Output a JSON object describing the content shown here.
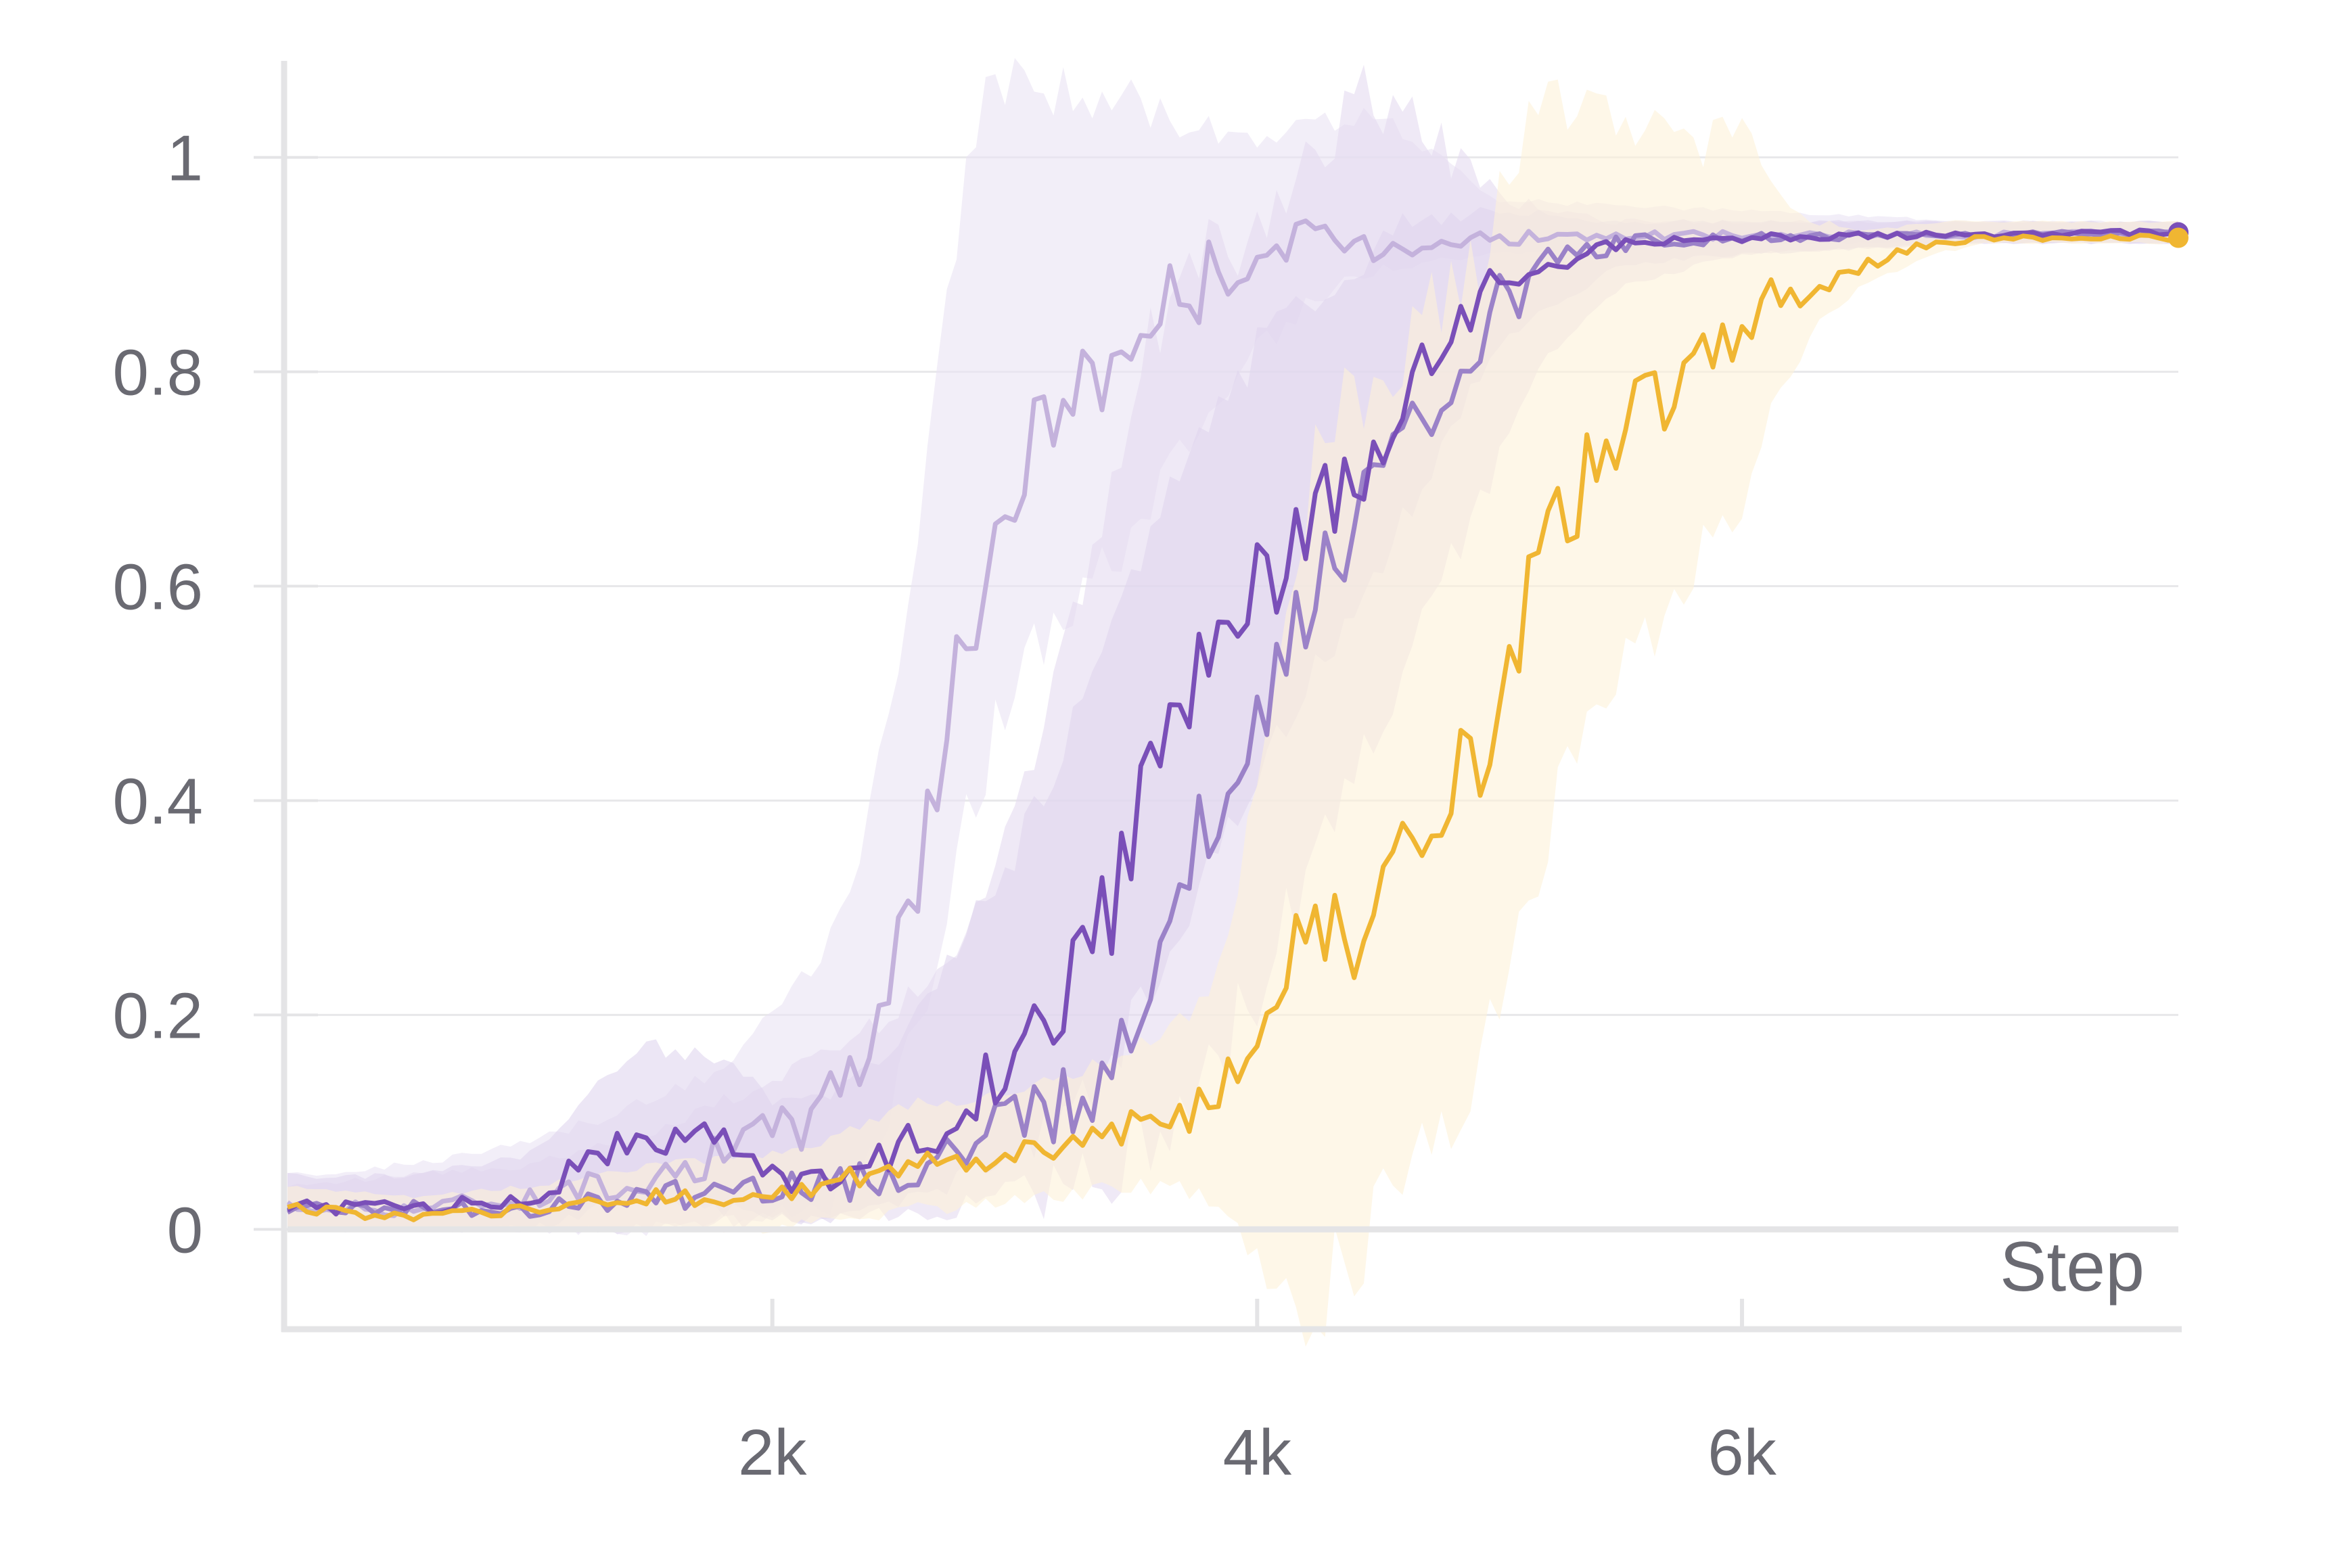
{
  "chart_data": {
    "type": "line",
    "xlabel": "Step",
    "ylabel": "",
    "xlim": [
      0,
      7800
    ],
    "ylim": [
      -0.09,
      1.09
    ],
    "grid": true,
    "x_ticks": [
      {
        "value": 2000,
        "label": "2k"
      },
      {
        "value": 4000,
        "label": "4k"
      },
      {
        "value": 6000,
        "label": "6k"
      }
    ],
    "y_ticks": [
      {
        "value": 0,
        "label": "0"
      },
      {
        "value": 0.2,
        "label": "0.2"
      },
      {
        "value": 0.4,
        "label": "0.4"
      },
      {
        "value": 0.6,
        "label": "0.6"
      },
      {
        "value": 0.8,
        "label": "0.8"
      },
      {
        "value": 1,
        "label": "1"
      }
    ],
    "series": [
      {
        "color": "#c4b2dc",
        "band_color": "#e9e2f3",
        "x": [
          0,
          500,
          1000,
          1500,
          1800,
          2000,
          2200,
          2400,
          2500,
          2600,
          2700,
          2800,
          2900,
          3000,
          3100,
          3300,
          3500,
          3600,
          3800,
          4000,
          4200,
          4500,
          5000,
          6000,
          7000,
          7800
        ],
        "y": [
          0.02,
          0.02,
          0.03,
          0.05,
          0.07,
          0.09,
          0.11,
          0.18,
          0.26,
          0.33,
          0.45,
          0.55,
          0.63,
          0.69,
          0.75,
          0.79,
          0.83,
          0.86,
          0.89,
          0.91,
          0.92,
          0.92,
          0.925,
          0.927,
          0.928,
          0.93
        ],
        "low": [
          0.0,
          0.0,
          0.0,
          0.0,
          0.01,
          0.01,
          0.02,
          0.06,
          0.12,
          0.2,
          0.28,
          0.38,
          0.45,
          0.5,
          0.55,
          0.6,
          0.65,
          0.7,
          0.76,
          0.82,
          0.86,
          0.9,
          0.91,
          0.92,
          0.92,
          0.92
        ],
        "high": [
          0.05,
          0.06,
          0.08,
          0.12,
          0.15,
          0.2,
          0.25,
          0.38,
          0.5,
          0.65,
          0.85,
          1.0,
          1.05,
          1.08,
          1.07,
          1.05,
          1.06,
          1.04,
          1.03,
          1.02,
          1.03,
          1.04,
          0.96,
          0.95,
          0.94,
          0.94
        ]
      },
      {
        "color": "#9b82c8",
        "band_color": "#e4dbf0",
        "x": [
          0,
          500,
          1000,
          1500,
          2000,
          2500,
          2800,
          3000,
          3200,
          3400,
          3500,
          3600,
          3800,
          4000,
          4200,
          4400,
          4600,
          4800,
          5000,
          5200,
          5500,
          6000,
          7000,
          7800
        ],
        "y": [
          0.02,
          0.02,
          0.02,
          0.03,
          0.04,
          0.05,
          0.07,
          0.09,
          0.12,
          0.16,
          0.2,
          0.28,
          0.38,
          0.48,
          0.58,
          0.66,
          0.72,
          0.79,
          0.86,
          0.9,
          0.92,
          0.925,
          0.928,
          0.93
        ],
        "low": [
          0.0,
          0.0,
          0.0,
          0.0,
          0.01,
          0.01,
          0.02,
          0.03,
          0.04,
          0.06,
          0.08,
          0.1,
          0.15,
          0.22,
          0.32,
          0.42,
          0.52,
          0.62,
          0.72,
          0.82,
          0.88,
          0.91,
          0.92,
          0.92
        ],
        "high": [
          0.04,
          0.05,
          0.06,
          0.09,
          0.14,
          0.2,
          0.28,
          0.38,
          0.55,
          0.7,
          0.8,
          0.86,
          0.9,
          0.95,
          1.0,
          1.05,
          1.05,
          1.0,
          0.96,
          0.95,
          0.94,
          0.94,
          0.94,
          0.94
        ]
      },
      {
        "color": "#7a4fb8",
        "band_color": "#e0d6ee",
        "x": [
          0,
          500,
          1000,
          1300,
          1500,
          1800,
          2000,
          2200,
          2400,
          2600,
          2800,
          3000,
          3200,
          3400,
          3500,
          3600,
          3800,
          4000,
          4200,
          4400,
          4600,
          4800,
          5000,
          5500,
          6000,
          7000,
          7800
        ],
        "y": [
          0.02,
          0.02,
          0.03,
          0.07,
          0.09,
          0.08,
          0.05,
          0.05,
          0.06,
          0.08,
          0.12,
          0.16,
          0.22,
          0.3,
          0.38,
          0.44,
          0.53,
          0.6,
          0.65,
          0.7,
          0.77,
          0.84,
          0.89,
          0.92,
          0.925,
          0.928,
          0.93
        ],
        "low": [
          0.0,
          0.0,
          0.0,
          0.02,
          0.03,
          0.02,
          0.01,
          0.01,
          0.02,
          0.03,
          0.05,
          0.07,
          0.1,
          0.15,
          0.2,
          0.25,
          0.33,
          0.42,
          0.5,
          0.58,
          0.66,
          0.75,
          0.83,
          0.9,
          0.91,
          0.92,
          0.92
        ],
        "high": [
          0.05,
          0.05,
          0.07,
          0.14,
          0.17,
          0.16,
          0.12,
          0.12,
          0.15,
          0.2,
          0.28,
          0.35,
          0.45,
          0.55,
          0.62,
          0.68,
          0.76,
          0.82,
          0.86,
          0.9,
          0.94,
          0.95,
          0.95,
          0.94,
          0.94,
          0.94,
          0.94
        ]
      },
      {
        "color": "#f0b632",
        "band_color": "#fdf1d8",
        "x": [
          0,
          500,
          1000,
          1500,
          2000,
          2200,
          2400,
          2600,
          2800,
          3000,
          3200,
          3400,
          3600,
          3800,
          3900,
          4000,
          4100,
          4200,
          4250,
          4300,
          4400,
          4500,
          4700,
          4900,
          5000,
          5100,
          5200,
          5300,
          5500,
          5700,
          5800,
          5900,
          6000,
          6100,
          6300,
          6500,
          6800,
          7000,
          7800
        ],
        "y": [
          0.02,
          0.01,
          0.02,
          0.03,
          0.03,
          0.04,
          0.05,
          0.06,
          0.06,
          0.07,
          0.08,
          0.09,
          0.1,
          0.11,
          0.14,
          0.2,
          0.24,
          0.28,
          0.33,
          0.27,
          0.26,
          0.32,
          0.38,
          0.44,
          0.48,
          0.58,
          0.63,
          0.68,
          0.74,
          0.77,
          0.79,
          0.82,
          0.8,
          0.87,
          0.88,
          0.9,
          0.92,
          0.925,
          0.925
        ],
        "low": [
          0.0,
          0.0,
          0.0,
          0.0,
          0.0,
          0.01,
          0.01,
          0.02,
          0.02,
          0.03,
          0.03,
          0.04,
          0.04,
          0.03,
          0.0,
          -0.02,
          -0.05,
          -0.08,
          -0.06,
          -0.05,
          -0.02,
          0.02,
          0.08,
          0.16,
          0.22,
          0.3,
          0.38,
          0.45,
          0.52,
          0.58,
          0.62,
          0.66,
          0.68,
          0.76,
          0.84,
          0.88,
          0.91,
          0.92,
          0.92
        ],
        "high": [
          0.04,
          0.03,
          0.04,
          0.06,
          0.07,
          0.08,
          0.1,
          0.12,
          0.12,
          0.13,
          0.14,
          0.16,
          0.18,
          0.22,
          0.3,
          0.42,
          0.55,
          0.65,
          0.72,
          0.75,
          0.78,
          0.8,
          0.85,
          0.9,
          0.95,
          1.02,
          1.07,
          1.06,
          1.04,
          1.02,
          1.0,
          1.02,
          1.05,
          0.97,
          0.94,
          0.93,
          0.94,
          0.94,
          0.94
        ]
      }
    ]
  }
}
